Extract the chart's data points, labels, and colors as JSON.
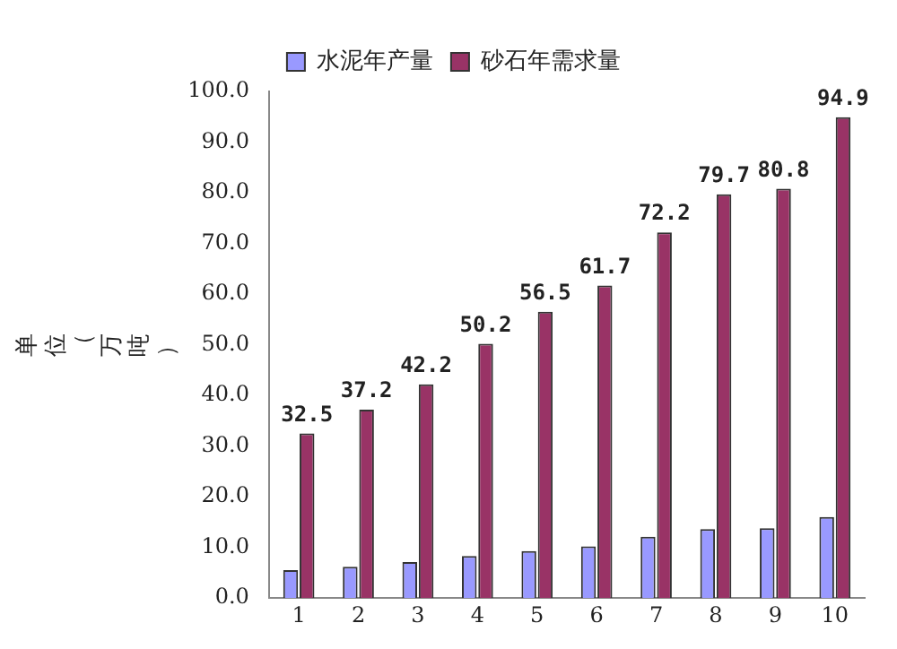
{
  "chart_data": {
    "type": "bar",
    "ylabel": "单位（万吨）",
    "categories": [
      "1",
      "2",
      "3",
      "4",
      "5",
      "6",
      "7",
      "8",
      "9",
      "10"
    ],
    "series": [
      {
        "name": "水泥年产量",
        "color": "#9999ff",
        "values": [
          5.5,
          6.2,
          7.1,
          8.3,
          9.3,
          10.2,
          12.1,
          13.6,
          13.8,
          16.0
        ]
      },
      {
        "name": "砂石年需求量",
        "color": "#993366",
        "values": [
          32.5,
          37.2,
          42.2,
          50.2,
          56.5,
          61.7,
          72.2,
          79.7,
          80.8,
          94.9
        ],
        "value_labels": [
          "32.5",
          "37.2",
          "42.2",
          "50.2",
          "56.5",
          "61.7",
          "72.2",
          "79.7",
          "80.8",
          "94.9"
        ]
      }
    ],
    "ylim": [
      0,
      100
    ],
    "yticks": [
      {
        "value": 0,
        "label": "0.0"
      },
      {
        "value": 10,
        "label": "10.0"
      },
      {
        "value": 20,
        "label": "20.0"
      },
      {
        "value": 30,
        "label": "30.0"
      },
      {
        "value": 40,
        "label": "40.0"
      },
      {
        "value": 50,
        "label": "50.0"
      },
      {
        "value": 60,
        "label": "60.0"
      },
      {
        "value": 70,
        "label": "70.0"
      },
      {
        "value": 80,
        "label": "80.0"
      },
      {
        "value": 90,
        "label": "90.0"
      },
      {
        "value": 100,
        "label": "100.0"
      }
    ],
    "grid": false,
    "legend": "top left"
  }
}
